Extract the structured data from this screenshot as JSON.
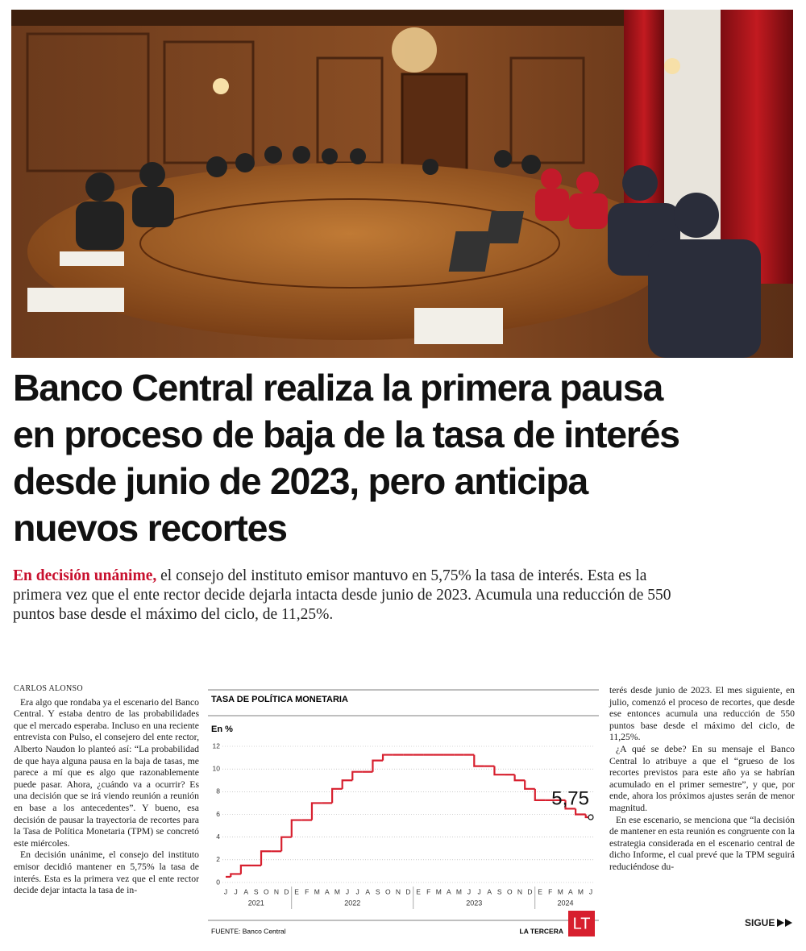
{
  "headline": "Banco Central realiza la primera pausa en proceso de baja de la tasa de interés desde junio de 2023, pero anticipa nuevos recortes",
  "lead": {
    "highlight": "En decisión unánime,",
    "text": "el consejo del instituto emisor mantuvo en 5,75% la tasa de interés. Esta es la primera vez que el ente rector decide dejarla intacta desde junio de 2023. Acumula una reducción de 550 puntos base desde el máximo del ciclo, de 11,25%."
  },
  "byline": "CARLOS ALONSO",
  "left_column": [
    "Era algo que rondaba ya el escenario del Banco Central. Y estaba dentro de las probabilidades que el mercado esperaba. Incluso en una reciente entrevista con Pulso, el consejero del ente rector, Alberto Naudon lo planteó así: “La probabilidad de que haya alguna pausa en la baja de tasas, me parece a mí que es algo que razonablemente puede pasar. Ahora, ¿cuándo va a ocurrir? Es una decisión que se irá viendo reunión a reunión en base a los antecedentes”. Y bueno, esa decisión de pausar la trayectoria de recortes para la Tasa de Política Monetaria (TPM) se concretó este miércoles.",
    "En decisión unánime, el consejo del instituto emisor decidió mantener en 5,75% la tasa de interés. Esta es la primera vez que el ente rector decide dejar intacta la tasa de in-"
  ],
  "right_column": [
    "terés desde junio de 2023. El mes siguiente, en julio, comenzó el proceso de recortes, que desde ese entonces acumula una reducción de 550 puntos base desde el máximo del ciclo, de 11,25%.",
    "¿A qué se debe? En su mensaje el Banco Central lo atribuye a que el “grueso de los recortes previstos para este año ya se habrían acumulado en el primer semestre”, y que, por ende, ahora los próximos ajustes serán de menor magnitud.",
    "En ese escenario, se menciona que “la decisión de mantener en esta reunión es congruente con la estrategia considerada en el escenario central de dicho Informe, el cual prevé que la TPM seguirá reduciéndose du-"
  ],
  "continue": "SIGUE",
  "chart_data": {
    "type": "step-line",
    "title": "TASA DE POLÍTICA MONETARIA",
    "y_unit": "En %",
    "source": "FUENTE: Banco Central",
    "brand": "LA TERCERA",
    "logo": "LT",
    "categories": [
      "J",
      "J",
      "A",
      "S",
      "O",
      "N",
      "D",
      "E",
      "F",
      "M",
      "A",
      "M",
      "J",
      "J",
      "A",
      "S",
      "O",
      "N",
      "D",
      "E",
      "F",
      "M",
      "A",
      "M",
      "J",
      "J",
      "A",
      "S",
      "O",
      "N",
      "D",
      "E",
      "F",
      "M",
      "A",
      "M",
      "J"
    ],
    "year_labels": [
      "2021",
      "2022",
      "2023",
      "2024"
    ],
    "series": [
      {
        "name": "TPM",
        "color": "#d71f2e",
        "values": [
          0.5,
          0.75,
          1.5,
          1.5,
          2.75,
          2.75,
          4.0,
          5.5,
          5.5,
          7.0,
          7.0,
          8.25,
          9.0,
          9.75,
          9.75,
          10.75,
          11.25,
          11.25,
          11.25,
          11.25,
          11.25,
          11.25,
          11.25,
          11.25,
          11.25,
          10.25,
          10.25,
          9.5,
          9.5,
          9.0,
          8.25,
          7.25,
          7.25,
          7.25,
          6.5,
          6.0,
          5.75
        ],
        "value_labels": [
          null,
          null,
          null,
          null,
          null,
          null,
          null,
          null,
          null,
          null,
          null,
          null,
          null,
          null,
          null,
          null,
          null,
          null,
          null,
          null,
          null,
          null,
          null,
          null,
          null,
          null,
          null,
          null,
          null,
          null,
          null,
          null,
          null,
          null,
          null,
          null,
          "5,75"
        ]
      }
    ],
    "ylim": [
      0,
      12
    ],
    "yticks": [
      0,
      2,
      4,
      6,
      8,
      10,
      12
    ],
    "grid": true
  }
}
